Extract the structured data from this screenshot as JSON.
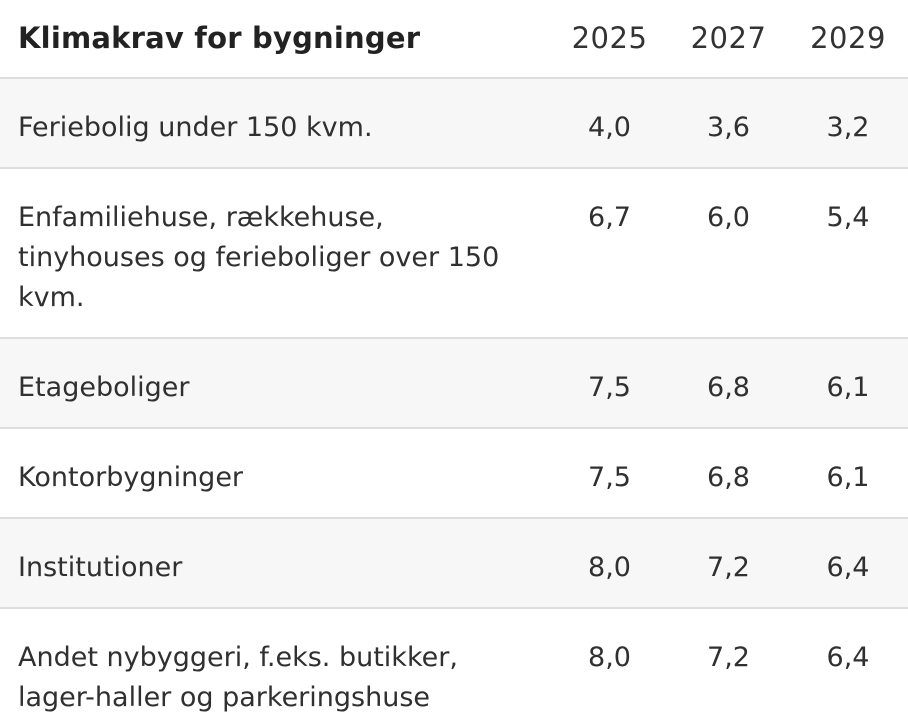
{
  "table": {
    "title": "Klimakrav for bygninger",
    "years": [
      "2025",
      "2027",
      "2029"
    ],
    "rows": [
      {
        "label": "Feriebolig under 150 kvm.",
        "values": [
          "4,0",
          "3,6",
          "3,2"
        ]
      },
      {
        "label": "Enfamiliehuse, rækkehuse, tinyhouses og ferieboliger over 150 kvm.",
        "values": [
          "6,7",
          "6,0",
          "5,4"
        ]
      },
      {
        "label": "Etageboliger",
        "values": [
          "7,5",
          "6,8",
          "6,1"
        ]
      },
      {
        "label": "Kontorbygninger",
        "values": [
          "7,5",
          "6,8",
          "6,1"
        ]
      },
      {
        "label": "Institutioner",
        "values": [
          "8,0",
          "7,2",
          "6,4"
        ]
      },
      {
        "label": "Andet nybyggeri, f.eks. butikker, lager-haller og parkeringshuse",
        "values": [
          "8,0",
          "7,2",
          "6,4"
        ]
      }
    ]
  }
}
